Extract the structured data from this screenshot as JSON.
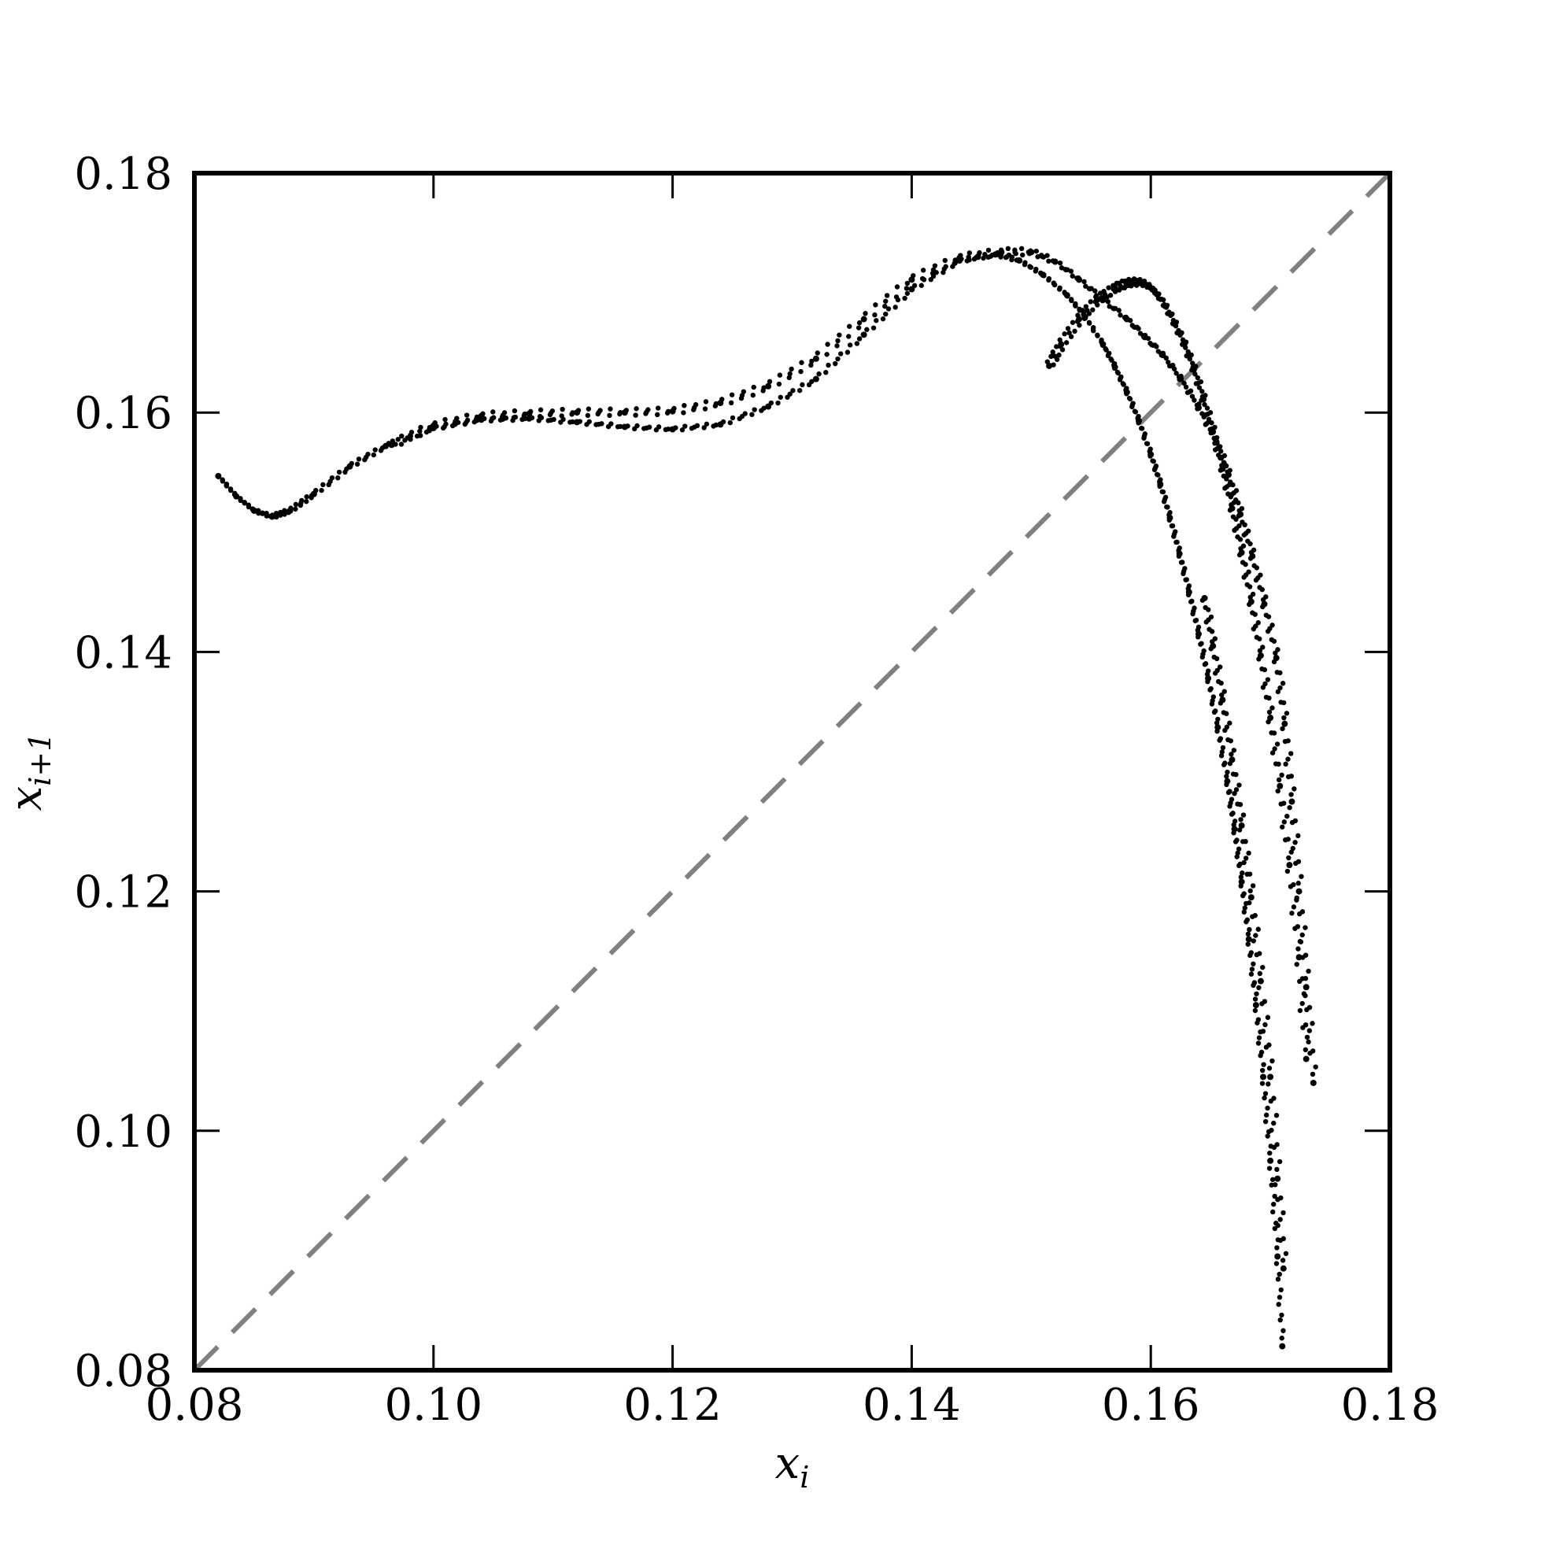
{
  "chart_data": {
    "type": "scatter",
    "title": "",
    "xlabel": {
      "base": "x",
      "sub": "i"
    },
    "ylabel": {
      "base": "x",
      "sub": "i+1"
    },
    "xlim": [
      0.08,
      0.18
    ],
    "ylim": [
      0.08,
      0.18
    ],
    "xticks": [
      "0.08",
      "0.10",
      "0.12",
      "0.14",
      "0.16",
      "0.18"
    ],
    "yticks": [
      "0.08",
      "0.10",
      "0.12",
      "0.14",
      "0.16",
      "0.18"
    ],
    "grid": false,
    "legend": "none",
    "colors": {
      "points": "#000000",
      "diagonal": "#808080",
      "frame": "#000000"
    },
    "diagonal": {
      "style": "dashed",
      "x": [
        0.08,
        0.18
      ],
      "y": [
        0.08,
        0.18
      ]
    },
    "series": [
      {
        "style": "dots",
        "x": [
          0.082,
          0.0835,
          0.085,
          0.0865,
          0.088,
          0.09,
          0.093,
          0.096,
          0.1,
          0.104,
          0.108,
          0.112,
          0.116,
          0.12,
          0.124,
          0.128,
          0.132,
          0.136,
          0.14,
          0.144,
          0.147,
          0.149,
          0.151,
          0.153,
          0.1545,
          0.156,
          0.157,
          0.158,
          0.159,
          0.16,
          0.1608,
          0.1616,
          0.1624,
          0.1632,
          0.164,
          0.1648,
          0.1656,
          0.1664,
          0.167,
          0.1676,
          0.1682,
          0.1688,
          0.1694,
          0.17,
          0.1706,
          0.171
        ],
        "y": [
          0.1547,
          0.153,
          0.1518,
          0.1513,
          0.1518,
          0.1532,
          0.1555,
          0.1572,
          0.1587,
          0.1594,
          0.1595,
          0.1592,
          0.1588,
          0.1586,
          0.159,
          0.1605,
          0.1628,
          0.1665,
          0.1703,
          0.1727,
          0.1732,
          0.1727,
          0.1715,
          0.1698,
          0.168,
          0.1657,
          0.1638,
          0.1617,
          0.1593,
          0.1565,
          0.154,
          0.1512,
          0.1482,
          0.145,
          0.1415,
          0.1378,
          0.1337,
          0.1292,
          0.1252,
          0.1208,
          0.116,
          0.1105,
          0.1045,
          0.0975,
          0.0895,
          0.082
        ]
      },
      {
        "style": "dots",
        "x": [
          0.0965,
          0.1,
          0.104,
          0.108,
          0.112,
          0.116,
          0.12,
          0.124,
          0.128,
          0.132,
          0.136,
          0.14,
          0.144,
          0.1475,
          0.15,
          0.152,
          0.154,
          0.156,
          0.158,
          0.1595,
          0.161,
          0.1625,
          0.164,
          0.1655,
          0.1665,
          0.1675,
          0.1685,
          0.1695,
          0.1705,
          0.1712,
          0.1718,
          0.1724,
          0.173,
          0.1736
        ],
        "y": [
          0.1573,
          0.1589,
          0.1597,
          0.1599,
          0.16,
          0.16,
          0.1601,
          0.1608,
          0.1622,
          0.1645,
          0.1678,
          0.1711,
          0.1729,
          0.1734,
          0.1734,
          0.1726,
          0.1711,
          0.1694,
          0.1678,
          0.1663,
          0.1648,
          0.1628,
          0.1604,
          0.1575,
          0.1548,
          0.1515,
          0.148,
          0.144,
          0.1395,
          0.134,
          0.1275,
          0.12,
          0.112,
          0.104
        ]
      },
      {
        "style": "dots",
        "x": [
          0.1515,
          0.1525,
          0.154,
          0.1555,
          0.157,
          0.158,
          0.159,
          0.1598,
          0.1605,
          0.1612,
          0.162,
          0.1628,
          0.1636,
          0.1644,
          0.1652,
          0.166,
          0.1668,
          0.1676,
          0.1684,
          0.1692,
          0.17,
          0.1708,
          0.1716,
          0.1724,
          0.173
        ],
        "y": [
          0.1639,
          0.1657,
          0.1678,
          0.1694,
          0.1704,
          0.1708,
          0.1709,
          0.1706,
          0.1699,
          0.1689,
          0.1674,
          0.1657,
          0.1636,
          0.1611,
          0.1584,
          0.1553,
          0.152,
          0.1483,
          0.1442,
          0.1397,
          0.1345,
          0.1288,
          0.1222,
          0.1145,
          0.106
        ]
      },
      {
        "style": "dots",
        "x": [
          0.1645,
          0.1652,
          0.166,
          0.1668,
          0.1676,
          0.1684,
          0.1692,
          0.17,
          0.1706,
          0.1711
        ],
        "y": [
          0.1445,
          0.1405,
          0.136,
          0.131,
          0.1255,
          0.1195,
          0.1125,
          0.1045,
          0.096,
          0.0885
        ]
      }
    ]
  }
}
